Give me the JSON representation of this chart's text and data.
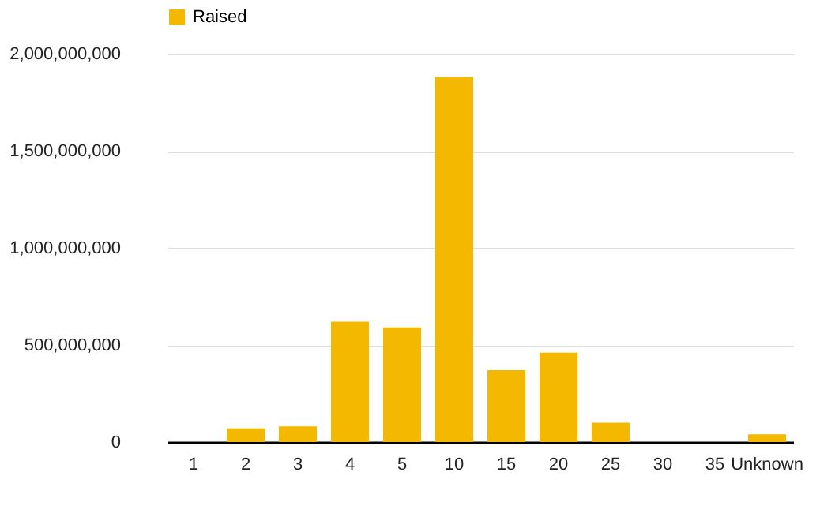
{
  "chart_data": {
    "type": "bar",
    "categories": [
      "1",
      "2",
      "3",
      "4",
      "5",
      "10",
      "15",
      "20",
      "25",
      "30",
      "35",
      "Unknown"
    ],
    "series": [
      {
        "name": "Raised",
        "color": "#f5b800",
        "values": [
          0,
          70000000,
          80000000,
          620000000,
          590000000,
          1880000000,
          370000000,
          460000000,
          100000000,
          0,
          0,
          40000000
        ]
      }
    ],
    "ylim": [
      0,
      2000000000
    ],
    "yticks": [
      0,
      {
        "value": 500000000,
        "label": "500,000,000"
      },
      {
        "value": 1000000000,
        "label": "1,000,000,000"
      },
      {
        "value": 1500000000,
        "label": "1,500,000,000"
      },
      {
        "value": 2000000000,
        "label": "2,000,000,000"
      }
    ],
    "grid": "y",
    "legend": "top"
  }
}
